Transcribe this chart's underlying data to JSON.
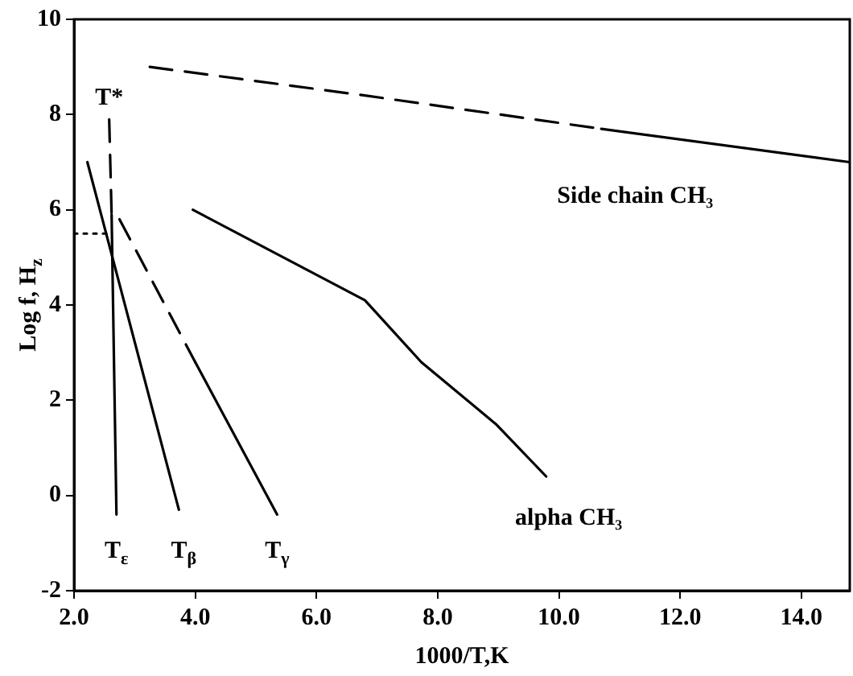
{
  "chart_data": {
    "type": "line",
    "xlabel": "1000/T,K",
    "ylabel": "Log f, H$_{z}$",
    "xlim": [
      2.0,
      14.8
    ],
    "xticks": [
      {
        "value": 2,
        "label": "2.0"
      },
      {
        "value": 4,
        "label": "4.0"
      },
      {
        "value": 6,
        "label": "6.0"
      },
      {
        "value": 8,
        "label": "8.0"
      },
      {
        "value": 10,
        "label": "10.0"
      },
      {
        "value": 12,
        "label": "12.0"
      },
      {
        "value": 14,
        "label": "14.0"
      }
    ],
    "ylim": [
      -2,
      10
    ],
    "yticks": [
      -2,
      0,
      2,
      4,
      6,
      8,
      10
    ],
    "grid": false,
    "legend": false,
    "marker": "none",
    "series": [
      {
        "color": "#000000",
        "line_style": "dashed",
        "x": [
          3.25,
          6.8,
          10.7
        ],
        "values": [
          9.0,
          8.4,
          7.7
        ]
      },
      {
        "name": "Side chain CH₃",
        "color": "#000000",
        "line_style": "solid",
        "x": [
          10.7,
          14.8
        ],
        "values": [
          7.7,
          7.0
        ]
      },
      {
        "name": "alpha CH₃",
        "color": "#000000",
        "line_style": "solid",
        "x": [
          3.96,
          6.8,
          7.73,
          8.96,
          9.79
        ],
        "values": [
          6.0,
          4.1,
          2.8,
          1.5,
          0.4
        ]
      },
      {
        "name": "T$_{β}$",
        "color": "#000000",
        "line_style": "solid",
        "x": [
          2.22,
          3.73
        ],
        "values": [
          7.0,
          -0.3
        ]
      },
      {
        "color": "#000000",
        "line_style": "dashed",
        "x": [
          2.58,
          2.62
        ],
        "values": [
          7.9,
          5.9
        ]
      },
      {
        "name": "T$_{ε}$",
        "color": "#000000",
        "line_style": "solid",
        "x": [
          2.62,
          2.7
        ],
        "values": [
          5.9,
          -0.4
        ]
      },
      {
        "color": "#000000",
        "line_style": "dashed",
        "x": [
          2.75,
          4.0
        ],
        "values": [
          5.8,
          2.8
        ]
      },
      {
        "name": "T$_{γ}$",
        "color": "#000000",
        "line_style": "solid",
        "x": [
          4.0,
          5.35
        ],
        "values": [
          2.8,
          -0.4
        ]
      },
      {
        "color": "#000000",
        "line_style": "dotted",
        "x": [
          2.0,
          2.55
        ],
        "values": [
          5.5,
          5.5
        ]
      }
    ],
    "annotations": [
      "T*"
    ]
  }
}
